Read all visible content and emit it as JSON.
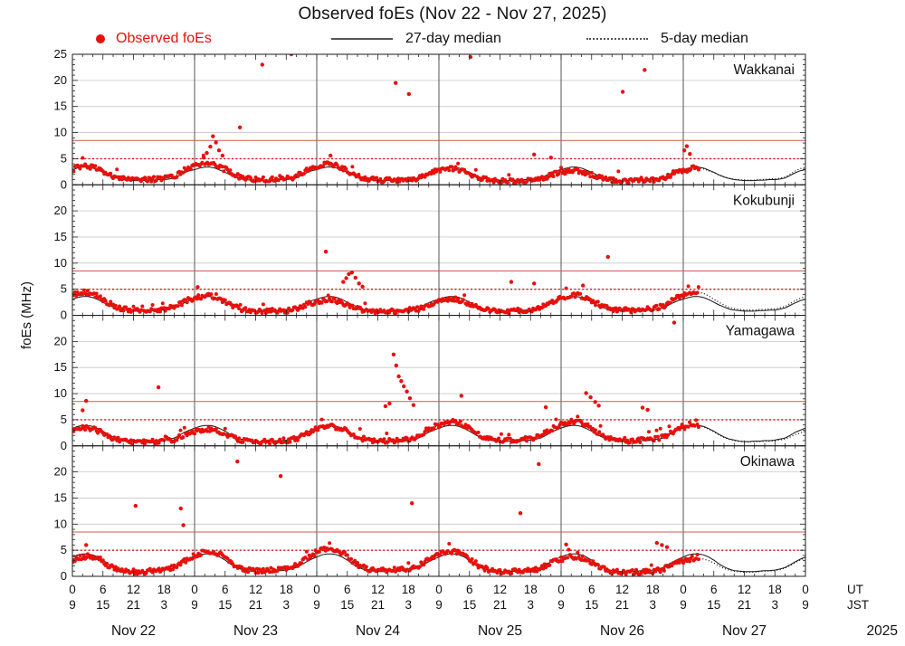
{
  "colors": {
    "observed": "#e8100c",
    "median_line": "#151515",
    "threshold_solid": "#d05a4e",
    "threshold_dotted": "#cc1414",
    "grid": "#c8c8c8",
    "day_line": "#555555",
    "panel_border": "#1a1a1a",
    "legend_line": "#555555",
    "tick": "#222222"
  },
  "chart_data": {
    "type": "scatter",
    "title": "Observed foEs (Nov 22 - Nov 27, 2025)",
    "ylabel": "foEs (MHz)",
    "legend": {
      "observed": "Observed foEs",
      "median27": "27-day median",
      "median5": "5-day median"
    },
    "x_axis": {
      "days": [
        "Nov 22",
        "Nov 23",
        "Nov 24",
        "Nov 25",
        "Nov 26",
        "Nov 27"
      ],
      "year": "2025",
      "hours_total": 144,
      "observed_end_hour": 123,
      "tick_interval_hours": 6,
      "minor_tick_hours": 2,
      "ut_row_label": "UT",
      "jst_row_label": "JST",
      "jst_offset_hours": 9,
      "ut_tick_values": [
        0,
        6,
        12,
        18
      ],
      "jst_tick_values": [
        9,
        15,
        21,
        3
      ]
    },
    "y_axis": {
      "min": 0,
      "max": 25,
      "tick_step": 5,
      "top_panel_max_label": 25
    },
    "thresholds": {
      "solid_red_mhz": 8.5,
      "dotted_red_mhz": 5.0
    },
    "stations": [
      {
        "name": "Wakkanai",
        "diurnal_median": [
          2.9,
          3.2,
          3.4,
          3.4,
          3.2,
          2.8,
          2.4,
          1.9,
          1.5,
          1.2,
          1.0,
          0.9,
          0.8,
          0.8,
          0.8,
          0.9,
          0.9,
          1.0,
          1.0,
          1.1,
          1.3,
          1.8,
          2.3,
          2.7
        ],
        "spikes": [
          [
            25.8,
            5.2
          ],
          [
            26.4,
            6.1
          ],
          [
            27.1,
            7.3
          ],
          [
            27.6,
            9.3
          ],
          [
            28.2,
            8.1
          ],
          [
            28.8,
            6.6
          ],
          [
            29.5,
            5.6
          ],
          [
            32.9,
            11.0
          ],
          [
            37.3,
            23.0
          ],
          [
            43.0,
            25.0
          ],
          [
            50.7,
            5.6
          ],
          [
            63.5,
            19.5
          ],
          [
            66.1,
            17.4
          ],
          [
            78.2,
            24.5
          ],
          [
            90.7,
            5.8
          ],
          [
            94.0,
            5.2
          ],
          [
            108.1,
            17.8
          ],
          [
            112.4,
            22.0
          ],
          [
            120.2,
            6.6
          ],
          [
            120.7,
            7.4
          ],
          [
            121.3,
            5.9
          ]
        ]
      },
      {
        "name": "Kokubunji",
        "diurnal_median": [
          3.1,
          3.4,
          3.6,
          3.6,
          3.4,
          3.0,
          2.5,
          2.0,
          1.6,
          1.2,
          1.0,
          0.9,
          0.8,
          0.8,
          0.8,
          0.9,
          0.9,
          1.0,
          1.0,
          1.2,
          1.4,
          1.9,
          2.4,
          2.8
        ],
        "spikes": [
          [
            24.6,
            5.4
          ],
          [
            49.8,
            12.2
          ],
          [
            53.2,
            6.4
          ],
          [
            53.8,
            7.1
          ],
          [
            54.3,
            7.9
          ],
          [
            54.9,
            8.2
          ],
          [
            55.6,
            7.2
          ],
          [
            56.3,
            6.1
          ],
          [
            57.0,
            5.5
          ],
          [
            86.2,
            6.4
          ],
          [
            90.7,
            6.1
          ],
          [
            100.3,
            5.7
          ],
          [
            105.2,
            11.2
          ]
        ]
      },
      {
        "name": "Yamagawa",
        "diurnal_median": [
          3.4,
          3.7,
          3.9,
          3.9,
          3.7,
          3.3,
          2.8,
          2.2,
          1.7,
          1.3,
          1.1,
          0.9,
          0.8,
          0.8,
          0.9,
          0.9,
          1.0,
          1.0,
          1.1,
          1.3,
          1.5,
          2.0,
          2.6,
          3.0
        ],
        "spikes": [
          [
            2.0,
            6.8
          ],
          [
            2.7,
            8.6
          ],
          [
            16.9,
            11.2
          ],
          [
            61.5,
            7.6
          ],
          [
            62.3,
            8.1
          ],
          [
            63.1,
            17.5
          ],
          [
            63.6,
            15.4
          ],
          [
            64.1,
            13.3
          ],
          [
            64.6,
            12.4
          ],
          [
            65.1,
            11.4
          ],
          [
            65.7,
            10.4
          ],
          [
            66.3,
            9.1
          ],
          [
            67.0,
            7.8
          ],
          [
            76.4,
            9.6
          ],
          [
            93.0,
            7.4
          ],
          [
            100.9,
            10.1
          ],
          [
            101.8,
            9.3
          ],
          [
            102.7,
            8.4
          ],
          [
            103.4,
            7.7
          ],
          [
            112.0,
            7.3
          ],
          [
            113.0,
            6.9
          ],
          [
            118.2,
            23.6
          ]
        ]
      },
      {
        "name": "Okinawa",
        "diurnal_median": [
          3.7,
          4.1,
          4.3,
          4.3,
          4.1,
          3.7,
          3.1,
          2.4,
          1.8,
          1.4,
          1.1,
          1.0,
          0.9,
          0.9,
          0.9,
          1.0,
          1.1,
          1.1,
          1.2,
          1.4,
          1.7,
          2.2,
          2.8,
          3.3
        ],
        "spikes": [
          [
            2.7,
            6.0
          ],
          [
            12.4,
            13.5
          ],
          [
            21.3,
            13.0
          ],
          [
            21.8,
            9.8
          ],
          [
            32.4,
            22.0
          ],
          [
            40.9,
            19.2
          ],
          [
            66.7,
            14.0
          ],
          [
            88.0,
            12.1
          ],
          [
            91.6,
            21.5
          ],
          [
            97.0,
            6.1
          ],
          [
            114.8,
            6.4
          ],
          [
            115.8,
            6.0
          ],
          [
            116.8,
            5.6
          ]
        ]
      }
    ]
  }
}
